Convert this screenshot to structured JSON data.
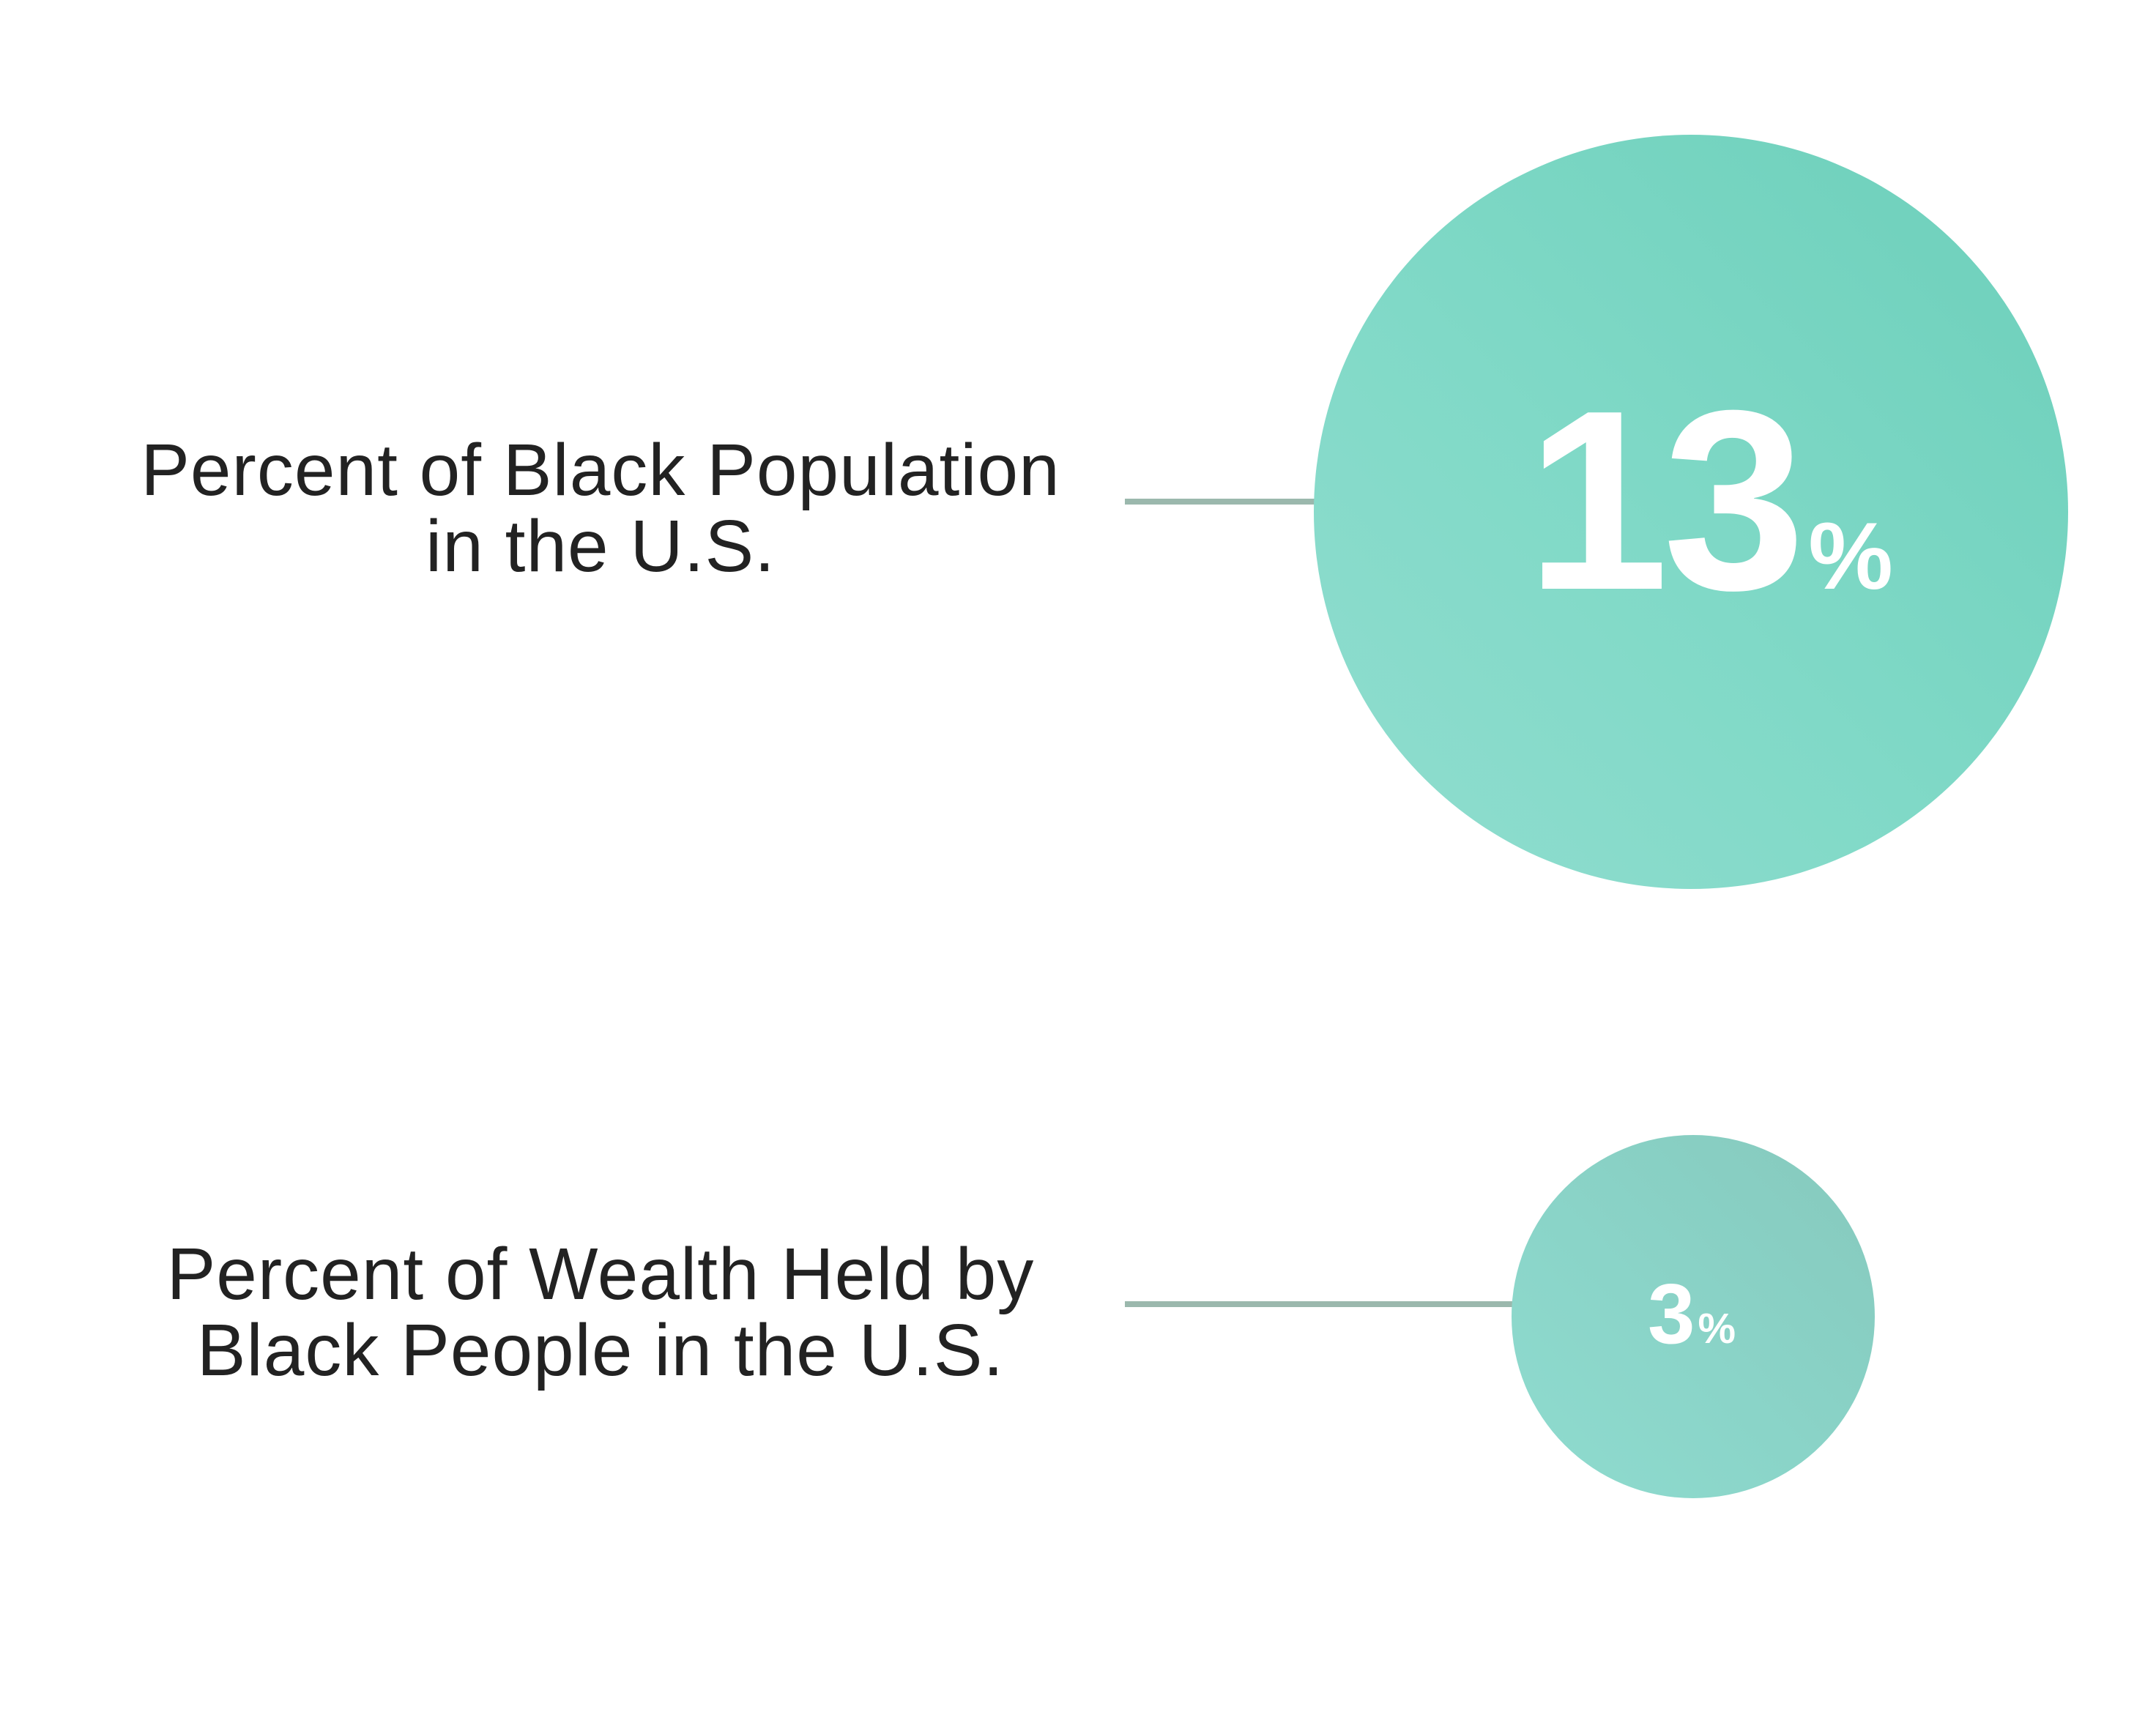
{
  "chart_data": {
    "type": "bubble",
    "unit": "%",
    "items": [
      {
        "label_lines": [
          "Percent of Black Population",
          "in the U.S."
        ],
        "value": 13,
        "value_text": "13",
        "unit_text": "%"
      },
      {
        "label_lines": [
          "Percent of Wealth Held by",
          "Black People in the U.S."
        ],
        "value": 3,
        "value_text": "3",
        "unit_text": "%"
      }
    ]
  },
  "colors": {
    "bubble_primary": "#6ccfba",
    "bubble_secondary": "#8fdccf",
    "connector": "#9bb8ad",
    "label_text": "#222222",
    "value_text": "#ffffff",
    "background": "#ffffff"
  }
}
